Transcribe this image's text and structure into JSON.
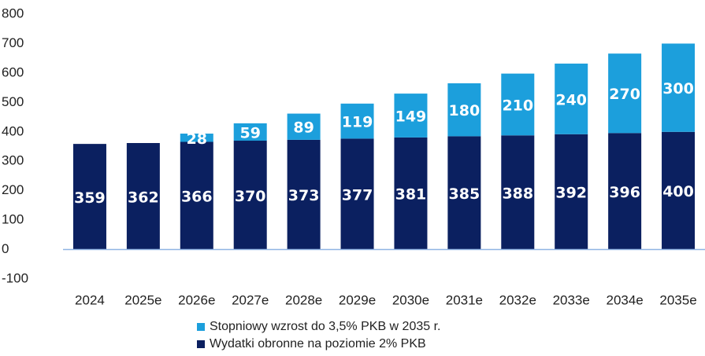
{
  "chart_data": {
    "type": "bar",
    "stacked": true,
    "categories": [
      "2024",
      "2025e",
      "2026e",
      "2027e",
      "2028e",
      "2029e",
      "2030e",
      "2031e",
      "2032e",
      "2033e",
      "2034e",
      "2035e"
    ],
    "series": [
      {
        "name": "Wydatki obronne na poziomie 2% PKB",
        "color": "#0b2060",
        "values": [
          359,
          362,
          366,
          370,
          373,
          377,
          381,
          385,
          388,
          392,
          396,
          400
        ]
      },
      {
        "name": "Stopniowy wzrost do 3,5% PKB w 2035 r.",
        "color": "#1c9fdc",
        "values": [
          null,
          null,
          28,
          59,
          89,
          119,
          149,
          180,
          210,
          240,
          270,
          300
        ]
      }
    ],
    "ylim": [
      -100,
      800
    ],
    "yticks": [
      -100,
      0,
      100,
      200,
      300,
      400,
      500,
      600,
      700,
      800
    ],
    "grid": false
  }
}
